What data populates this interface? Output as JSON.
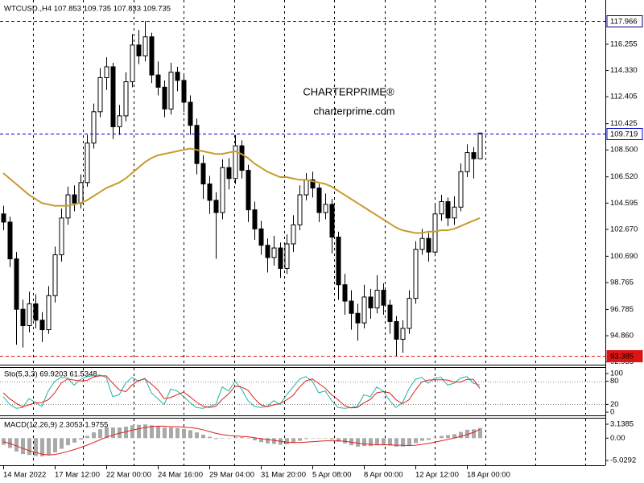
{
  "chart_data": [
    {
      "type": "candlestick",
      "title": "WTCUSD.,H4 107.853 109.735 107.833 109.735",
      "watermark": "CHARTERPRIME®",
      "watermark_url": "charterprime.com",
      "categories": [
        "14 Mar 2022",
        null,
        null,
        null,
        null,
        null,
        null,
        null,
        "17 Mar 12:00",
        null,
        null,
        null,
        null,
        null,
        null,
        null,
        "22 Mar 00:00",
        null,
        null,
        null,
        null,
        null,
        null,
        null,
        "24 Mar 16:00",
        null,
        null,
        null,
        null,
        null,
        null,
        null,
        "29 Mar 04:00",
        null,
        null,
        null,
        null,
        null,
        null,
        null,
        "31 Mar 20:00",
        null,
        null,
        null,
        null,
        null,
        null,
        null,
        "5 Apr 08:00",
        null,
        null,
        null,
        null,
        null,
        null,
        null,
        "8 Apr 00:00",
        null,
        null,
        null,
        null,
        null,
        null,
        null,
        "12 Apr 12:00",
        null,
        null,
        null,
        null,
        null,
        null,
        null,
        "18 Apr 00:00",
        null,
        null
      ],
      "open": [
        103.8,
        103.2,
        100.5,
        96.8,
        95.6,
        97.2,
        96.0,
        95.3,
        97.8,
        100.8,
        103.5,
        105.2,
        104.6,
        106.1,
        109.0,
        111.3,
        113.8,
        114.6,
        110.2,
        111.0,
        113.5,
        116.2,
        115.4,
        116.8,
        114.0,
        113.1,
        111.5,
        114.2,
        113.6,
        112.0,
        110.3,
        107.5,
        106.0,
        104.8,
        103.9,
        107.2,
        106.4,
        108.8,
        107.0,
        104.1,
        102.7,
        101.5,
        100.6,
        101.3,
        99.8,
        101.6,
        103.0,
        105.2,
        106.3,
        105.7,
        103.9,
        104.5,
        102.1,
        98.6,
        97.4,
        96.5,
        95.8,
        97.7,
        96.9,
        98.2,
        97.1,
        95.9,
        94.6,
        95.4,
        97.6,
        101.2,
        102.0,
        101.0,
        103.8,
        104.7,
        103.5,
        104.3,
        106.9,
        108.3,
        107.853
      ],
      "high": [
        104.4,
        103.6,
        101.0,
        97.5,
        98.1,
        97.9,
        96.6,
        98.5,
        101.4,
        104.2,
        105.8,
        105.9,
        106.7,
        109.6,
        111.9,
        114.5,
        115.3,
        114.9,
        111.8,
        114.2,
        117.0,
        117.3,
        117.966,
        117.1,
        115.0,
        113.6,
        114.9,
        114.6,
        114.0,
        112.5,
        110.8,
        108.1,
        106.6,
        105.4,
        107.8,
        107.9,
        109.6,
        109.2,
        107.4,
        104.7,
        103.3,
        102.0,
        102.2,
        101.7,
        102.3,
        103.7,
        105.9,
        106.8,
        106.9,
        106.0,
        105.3,
        104.9,
        102.5,
        99.4,
        98.2,
        97.2,
        98.6,
        98.3,
        99.3,
        98.7,
        97.5,
        96.3,
        96.0,
        98.2,
        101.8,
        102.7,
        102.4,
        104.5,
        105.2,
        105.0,
        105.1,
        107.5,
        108.9,
        108.7,
        109.735
      ],
      "low": [
        102.6,
        99.9,
        94.2,
        94.0,
        95.1,
        95.4,
        94.4,
        95.0,
        97.3,
        100.3,
        103.0,
        104.0,
        104.2,
        105.8,
        108.6,
        110.9,
        112.9,
        109.3,
        109.6,
        110.6,
        113.1,
        114.8,
        115.0,
        113.4,
        112.5,
        110.9,
        111.1,
        112.8,
        111.3,
        109.6,
        106.7,
        104.9,
        103.8,
        100.5,
        103.4,
        105.6,
        106.0,
        106.4,
        103.2,
        101.9,
        100.8,
        99.5,
        100.0,
        99.1,
        99.4,
        101.0,
        102.6,
        104.8,
        105.0,
        103.2,
        103.4,
        100.9,
        97.5,
        96.4,
        95.3,
        94.5,
        95.4,
        96.1,
        96.5,
        96.4,
        95.0,
        93.385,
        93.6,
        95.0,
        97.2,
        100.8,
        100.3,
        100.7,
        103.3,
        102.9,
        103.0,
        104.0,
        106.5,
        106.4,
        107.833
      ],
      "close": [
        103.2,
        100.5,
        96.8,
        95.6,
        97.2,
        96.0,
        95.3,
        97.8,
        100.8,
        103.5,
        105.2,
        104.6,
        106.1,
        109.0,
        111.3,
        113.8,
        114.6,
        110.2,
        111.0,
        113.5,
        116.2,
        115.4,
        116.8,
        114.0,
        113.1,
        111.5,
        114.2,
        113.6,
        112.0,
        110.3,
        107.5,
        106.0,
        104.8,
        103.9,
        107.2,
        106.4,
        108.8,
        107.0,
        104.1,
        102.7,
        101.5,
        100.6,
        101.3,
        99.8,
        101.6,
        103.0,
        105.2,
        106.3,
        105.7,
        103.9,
        104.5,
        102.1,
        98.6,
        97.4,
        96.5,
        95.8,
        97.7,
        96.9,
        98.2,
        97.1,
        95.9,
        94.6,
        95.4,
        97.6,
        101.2,
        102.0,
        101.0,
        103.8,
        104.7,
        103.5,
        104.3,
        106.9,
        108.3,
        107.853,
        109.735
      ],
      "bull_color": "#ffffff",
      "bear_color": "#000000",
      "moving_average": {
        "color": "#c89b2c",
        "values": [
          106.8,
          106.4,
          106.0,
          105.6,
          105.2,
          104.9,
          104.6,
          104.5,
          104.4,
          104.4,
          104.4,
          104.5,
          104.6,
          104.8,
          105.1,
          105.4,
          105.7,
          105.9,
          106.1,
          106.4,
          106.8,
          107.2,
          107.6,
          107.9,
          108.1,
          108.2,
          108.3,
          108.4,
          108.5,
          108.6,
          108.5,
          108.4,
          108.3,
          108.2,
          108.2,
          108.3,
          108.4,
          108.2,
          107.9,
          107.5,
          107.2,
          106.9,
          106.7,
          106.5,
          106.5,
          106.4,
          106.3,
          106.3,
          106.2,
          106.1,
          106.0,
          105.8,
          105.5,
          105.2,
          104.9,
          104.6,
          104.3,
          104.0,
          103.7,
          103.4,
          103.1,
          102.8,
          102.6,
          102.5,
          102.4,
          102.4,
          102.5,
          102.5,
          102.6,
          102.6,
          102.7,
          102.9,
          103.1,
          103.3,
          103.5
        ]
      },
      "price_lines": [
        {
          "value": 117.966,
          "color": "#00008b"
        },
        {
          "value": 109.719,
          "color": "#0000cd"
        },
        {
          "value": 93.385,
          "color": "#dc1414"
        }
      ],
      "ylim": [
        92.794,
        119.502
      ],
      "yticks": [
        116.255,
        {
          "value": 114.33,
          "label": "114.330"
        },
        112.405,
        110.425,
        {
          "value": 108.5,
          "label": "108.500"
        },
        {
          "value": 106.52,
          "label": "106.520"
        },
        104.595,
        {
          "value": 102.67,
          "label": "102.670"
        },
        {
          "value": 100.69,
          "label": "100.690"
        },
        98.765,
        96.785,
        {
          "value": 94.86,
          "label": "94.860"
        },
        92.935
      ]
    },
    {
      "type": "line",
      "title": "Sto(5,3,3) 69.9203 61.5348",
      "main": {
        "color": "#20b2aa",
        "values": [
          40,
          20,
          10,
          12,
          35,
          25,
          15,
          55,
          80,
          90,
          88,
          70,
          85,
          92,
          95,
          96,
          90,
          40,
          45,
          75,
          90,
          80,
          88,
          50,
          35,
          20,
          60,
          55,
          40,
          25,
          12,
          10,
          15,
          20,
          65,
          55,
          80,
          60,
          30,
          15,
          12,
          15,
          30,
          20,
          45,
          65,
          85,
          92,
          80,
          50,
          55,
          30,
          12,
          10,
          12,
          15,
          45,
          40,
          65,
          55,
          30,
          12,
          25,
          60,
          85,
          90,
          75,
          88,
          90,
          70,
          75,
          88,
          92,
          75,
          69.9203
        ]
      },
      "signal": {
        "color": "#e0201b",
        "values": [
          50,
          35,
          23,
          14,
          19,
          24,
          25,
          32,
          50,
          75,
          86,
          83,
          81,
          82,
          91,
          94,
          94,
          75,
          58,
          53,
          70,
          82,
          86,
          73,
          58,
          35,
          38,
          45,
          52,
          40,
          26,
          16,
          12,
          15,
          33,
          47,
          67,
          65,
          57,
          35,
          19,
          14,
          19,
          22,
          32,
          43,
          65,
          81,
          86,
          74,
          62,
          45,
          32,
          17,
          11,
          12,
          24,
          33,
          50,
          53,
          50,
          32,
          22,
          32,
          57,
          78,
          83,
          84,
          84,
          83,
          78,
          78,
          85,
          85,
          61.5348
        ]
      },
      "levels": [
        80,
        20
      ],
      "ylim": [
        -6.25,
        114.6
      ],
      "yticks": [
        100,
        80,
        20,
        0
      ]
    },
    {
      "type": "bar",
      "title": "MACD(12,26,9) 2.3053 1.9755",
      "histogram": {
        "color": "#a9a9a9",
        "values": [
          -1.5,
          -2.2,
          -3.0,
          -3.6,
          -3.8,
          -4.0,
          -4.1,
          -3.8,
          -3.2,
          -2.4,
          -1.6,
          -1.0,
          -0.3,
          0.5,
          1.3,
          2.0,
          2.5,
          2.4,
          2.4,
          2.6,
          2.9,
          3.0,
          3.1,
          2.9,
          2.7,
          2.4,
          2.4,
          2.3,
          2.1,
          1.8,
          1.3,
          0.8,
          0.3,
          -0.2,
          -0.1,
          0.0,
          0.2,
          0.2,
          -0.1,
          -0.5,
          -0.9,
          -1.2,
          -1.3,
          -1.5,
          -1.4,
          -1.1,
          -0.6,
          -0.2,
          0.0,
          -0.1,
          -0.1,
          -0.3,
          -0.8,
          -1.2,
          -1.6,
          -1.9,
          -1.8,
          -1.8,
          -1.6,
          -1.6,
          -1.7,
          -1.9,
          -1.9,
          -1.7,
          -1.1,
          -0.6,
          -0.4,
          0.1,
          0.5,
          0.7,
          0.9,
          1.4,
          1.9,
          2.0,
          2.3053
        ]
      },
      "signal": {
        "color": "#e0201b",
        "values": [
          -0.8,
          -1.2,
          -1.7,
          -2.3,
          -2.8,
          -3.2,
          -3.6,
          -3.8,
          -3.7,
          -3.4,
          -3.0,
          -2.6,
          -2.1,
          -1.6,
          -1.0,
          -0.4,
          0.2,
          0.7,
          1.1,
          1.4,
          1.8,
          2.1,
          2.4,
          2.6,
          2.7,
          2.7,
          2.6,
          2.6,
          2.5,
          2.4,
          2.2,
          1.9,
          1.5,
          1.1,
          0.8,
          0.6,
          0.5,
          0.4,
          0.3,
          0.1,
          -0.1,
          -0.3,
          -0.5,
          -0.7,
          -0.9,
          -1.0,
          -1.0,
          -0.9,
          -0.8,
          -0.7,
          -0.6,
          -0.6,
          -0.6,
          -0.7,
          -0.9,
          -1.1,
          -1.3,
          -1.4,
          -1.5,
          -1.5,
          -1.5,
          -1.6,
          -1.6,
          -1.7,
          -1.6,
          -1.4,
          -1.2,
          -0.9,
          -0.6,
          -0.3,
          0.0,
          0.4,
          0.8,
          1.3,
          1.9755
        ]
      },
      "ylim": [
        -6.118,
        4.409
      ],
      "yticks": [
        3.1385,
        {
          "value": 0,
          "label": "0.00"
        },
        -5.0292
      ]
    }
  ]
}
